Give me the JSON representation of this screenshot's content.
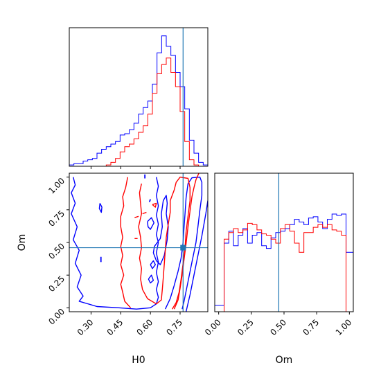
{
  "chart_data": {
    "type": "corner",
    "colors": {
      "blue": "#0000ff",
      "red": "#ff0000",
      "truth": "#1f77b4"
    },
    "truth": {
      "H0": 0.765,
      "Om": 0.46
    },
    "parameters": [
      "H0",
      "Om"
    ],
    "xlabel_h0": "H0",
    "xlabel_om": "Om",
    "ylabel_om": "Om",
    "h0_range": [
      0.19,
      0.89
    ],
    "om_range": [
      -0.03,
      1.03
    ],
    "h0_ticks": [
      "0.30",
      "0.45",
      "0.60",
      "0.75"
    ],
    "h0_tick_values": [
      0.3,
      0.45,
      0.6,
      0.75
    ],
    "om_ticks": [
      "0.00",
      "0.25",
      "0.50",
      "0.75",
      "1.00"
    ],
    "om_tick_values": [
      0.0,
      0.25,
      0.5,
      0.75,
      1.0
    ],
    "hist_h0": {
      "bin_edges": [
        0.19,
        0.2133,
        0.2367,
        0.26,
        0.2833,
        0.3067,
        0.33,
        0.3533,
        0.3767,
        0.4,
        0.4233,
        0.4467,
        0.47,
        0.4933,
        0.5167,
        0.54,
        0.5633,
        0.5867,
        0.61,
        0.6333,
        0.6567,
        0.68,
        0.7033,
        0.7267,
        0.75,
        0.7733,
        0.7967,
        0.82,
        0.8433,
        0.8667,
        0.89
      ],
      "series": [
        {
          "name": "blue",
          "values": [
            0.01,
            0.02,
            0.02,
            0.04,
            0.05,
            0.06,
            0.1,
            0.13,
            0.15,
            0.17,
            0.19,
            0.24,
            0.25,
            0.28,
            0.33,
            0.4,
            0.45,
            0.5,
            0.63,
            0.87,
            1.0,
            0.92,
            0.85,
            0.72,
            0.61,
            0.44,
            0.2,
            0.1,
            0.03,
            0.01
          ]
        },
        {
          "name": "red",
          "values": [
            0,
            0,
            0,
            0,
            0,
            0,
            0,
            0,
            0.01,
            0.03,
            0.06,
            0.11,
            0.15,
            0.17,
            0.21,
            0.26,
            0.31,
            0.4,
            0.56,
            0.71,
            0.78,
            0.83,
            0.72,
            0.61,
            0.42,
            0.19,
            0.05,
            0.01,
            0,
            0
          ]
        }
      ]
    },
    "hist_om": {
      "bin_edges": [
        -0.03,
        0.0059,
        0.0418,
        0.0777,
        0.1135,
        0.1494,
        0.1853,
        0.2212,
        0.2571,
        0.2929,
        0.3288,
        0.3647,
        0.4006,
        0.4365,
        0.4724,
        0.5082,
        0.5441,
        0.58,
        0.6159,
        0.6518,
        0.6876,
        0.7235,
        0.7594,
        0.7953,
        0.8312,
        0.8671,
        0.9029,
        0.9388,
        0.9747,
        1.0106,
        1.03
      ],
      "series": [
        {
          "name": "blue",
          "values": [
            0.05,
            0.05,
            0.52,
            0.61,
            0.5,
            0.58,
            0.63,
            0.52,
            0.58,
            0.6,
            0.5,
            0.48,
            0.56,
            0.6,
            0.61,
            0.63,
            0.66,
            0.7,
            0.68,
            0.66,
            0.71,
            0.72,
            0.68,
            0.63,
            0.7,
            0.74,
            0.73,
            0.74,
            0.45,
            0.45
          ]
        },
        {
          "name": "red",
          "values": [
            0.0,
            0.0,
            0.55,
            0.6,
            0.63,
            0.6,
            0.62,
            0.67,
            0.66,
            0.62,
            0.59,
            0.58,
            0.55,
            0.52,
            0.63,
            0.66,
            0.61,
            0.52,
            0.45,
            0.6,
            0.6,
            0.64,
            0.66,
            0.64,
            0.66,
            0.62,
            0.61,
            0.58,
            0.0,
            0.0
          ]
        }
      ]
    },
    "contours": {
      "blue": [
        [
          [
            0.21,
            1.0
          ],
          [
            0.22,
            0.94
          ],
          [
            0.2,
            0.88
          ],
          [
            0.22,
            0.8
          ],
          [
            0.2,
            0.72
          ],
          [
            0.23,
            0.62
          ],
          [
            0.21,
            0.52
          ],
          [
            0.24,
            0.44
          ],
          [
            0.22,
            0.34
          ],
          [
            0.25,
            0.25
          ],
          [
            0.23,
            0.16
          ],
          [
            0.26,
            0.09
          ],
          [
            0.24,
            0.05
          ],
          [
            0.33,
            0.01
          ],
          [
            0.44,
            0.0
          ],
          [
            0.53,
            -0.01
          ],
          [
            0.6,
            0.0
          ],
          [
            0.63,
            0.03
          ],
          [
            0.64,
            0.08
          ],
          [
            0.63,
            0.14
          ],
          [
            0.64,
            0.2
          ],
          [
            0.63,
            0.27
          ],
          [
            0.64,
            0.35
          ],
          [
            0.63,
            0.42
          ],
          [
            0.64,
            0.5
          ],
          [
            0.63,
            0.56
          ],
          [
            0.64,
            0.64
          ],
          [
            0.63,
            0.71
          ],
          [
            0.64,
            0.78
          ],
          [
            0.63,
            0.86
          ],
          [
            0.64,
            0.93
          ],
          [
            0.63,
            1.0
          ]
        ],
        [
          [
            0.78,
            -0.03
          ],
          [
            0.8,
            0.1
          ],
          [
            0.82,
            0.25
          ],
          [
            0.84,
            0.4
          ],
          [
            0.86,
            0.55
          ],
          [
            0.88,
            0.72
          ],
          [
            0.89,
            0.82
          ]
        ],
        [
          [
            0.675,
            -0.01
          ],
          [
            0.7,
            0.07
          ],
          [
            0.72,
            0.17
          ],
          [
            0.74,
            0.28
          ],
          [
            0.755,
            0.38
          ],
          [
            0.765,
            0.5
          ],
          [
            0.77,
            0.62
          ],
          [
            0.775,
            0.72
          ],
          [
            0.78,
            0.84
          ],
          [
            0.79,
            0.95
          ],
          [
            0.81,
            0.995
          ],
          [
            0.85,
            1.0
          ],
          [
            0.86,
            0.96
          ],
          [
            0.86,
            0.86
          ],
          [
            0.85,
            0.75
          ],
          [
            0.84,
            0.62
          ],
          [
            0.83,
            0.5
          ],
          [
            0.81,
            0.35
          ],
          [
            0.79,
            0.2
          ],
          [
            0.77,
            0.05
          ],
          [
            0.76,
            -0.01
          ]
        ],
        [
          [
            0.615,
            0.42
          ],
          [
            0.63,
            0.36
          ],
          [
            0.65,
            0.33
          ],
          [
            0.67,
            0.4
          ],
          [
            0.685,
            0.52
          ],
          [
            0.69,
            0.62
          ],
          [
            0.68,
            0.72
          ],
          [
            0.685,
            0.8
          ],
          [
            0.68,
            0.86
          ],
          [
            0.665,
            0.82
          ],
          [
            0.655,
            0.72
          ],
          [
            0.66,
            0.62
          ],
          [
            0.65,
            0.53
          ],
          [
            0.62,
            0.47
          ],
          [
            0.615,
            0.42
          ]
        ],
        [
          [
            0.345,
            0.8
          ],
          [
            0.355,
            0.77
          ],
          [
            0.352,
            0.73
          ],
          [
            0.342,
            0.76
          ],
          [
            0.345,
            0.8
          ]
        ],
        [
          [
            0.585,
            0.66
          ],
          [
            0.605,
            0.69
          ],
          [
            0.618,
            0.65
          ],
          [
            0.6,
            0.6
          ],
          [
            0.588,
            0.62
          ],
          [
            0.585,
            0.66
          ]
        ],
        [
          [
            0.59,
            0.22
          ],
          [
            0.605,
            0.25
          ],
          [
            0.615,
            0.21
          ],
          [
            0.6,
            0.19
          ],
          [
            0.59,
            0.22
          ]
        ],
        [
          [
            0.6,
            0.33
          ],
          [
            0.615,
            0.36
          ],
          [
            0.625,
            0.33
          ],
          [
            0.61,
            0.3
          ],
          [
            0.6,
            0.33
          ]
        ]
      ],
      "red": [
        [
          [
            0.485,
            1.0
          ],
          [
            0.475,
            0.92
          ],
          [
            0.46,
            0.85
          ],
          [
            0.465,
            0.78
          ],
          [
            0.45,
            0.7
          ],
          [
            0.45,
            0.62
          ],
          [
            0.46,
            0.54
          ],
          [
            0.45,
            0.47
          ],
          [
            0.46,
            0.4
          ],
          [
            0.45,
            0.33
          ],
          [
            0.465,
            0.25
          ],
          [
            0.45,
            0.18
          ],
          [
            0.46,
            0.12
          ],
          [
            0.47,
            0.05
          ],
          [
            0.5,
            0.0
          ]
        ],
        [
          [
            0.555,
            0.95
          ],
          [
            0.545,
            0.88
          ],
          [
            0.55,
            0.8
          ],
          [
            0.555,
            0.72
          ],
          [
            0.54,
            0.62
          ],
          [
            0.55,
            0.54
          ],
          [
            0.555,
            0.46
          ],
          [
            0.545,
            0.38
          ],
          [
            0.555,
            0.3
          ],
          [
            0.55,
            0.22
          ],
          [
            0.56,
            0.14
          ],
          [
            0.585,
            0.07
          ],
          [
            0.63,
            0.03
          ],
          [
            0.655,
            0.06
          ],
          [
            0.66,
            0.14
          ],
          [
            0.665,
            0.23
          ],
          [
            0.67,
            0.33
          ],
          [
            0.675,
            0.44
          ],
          [
            0.68,
            0.54
          ],
          [
            0.69,
            0.64
          ],
          [
            0.7,
            0.73
          ],
          [
            0.7,
            0.82
          ],
          [
            0.72,
            0.9
          ],
          [
            0.73,
            0.96
          ],
          [
            0.75,
            1.0
          ],
          [
            0.79,
            0.99
          ],
          [
            0.8,
            0.92
          ],
          [
            0.8,
            0.82
          ],
          [
            0.79,
            0.7
          ],
          [
            0.78,
            0.58
          ],
          [
            0.775,
            0.46
          ],
          [
            0.765,
            0.34
          ],
          [
            0.755,
            0.22
          ],
          [
            0.745,
            0.12
          ],
          [
            0.73,
            0.04
          ],
          [
            0.71,
            -0.01
          ]
        ],
        [
          [
            0.72,
            -0.01
          ],
          [
            0.74,
            0.06
          ],
          [
            0.75,
            0.15
          ],
          [
            0.76,
            0.25
          ],
          [
            0.77,
            0.37
          ],
          [
            0.78,
            0.49
          ],
          [
            0.79,
            0.62
          ],
          [
            0.8,
            0.74
          ],
          [
            0.81,
            0.85
          ],
          [
            0.82,
            0.92
          ],
          [
            0.83,
            0.98
          ],
          [
            0.845,
            1.03
          ]
        ],
        [
          [
            0.52,
            0.69
          ],
          [
            0.54,
            0.7
          ]
        ],
        [
          [
            0.56,
            0.72
          ],
          [
            0.58,
            0.73
          ]
        ],
        [
          [
            0.52,
            0.53
          ],
          [
            0.535,
            0.53
          ]
        ],
        [
          [
            0.61,
            0.79
          ],
          [
            0.63,
            0.8
          ],
          [
            0.625,
            0.77
          ],
          [
            0.61,
            0.79
          ]
        ]
      ],
      "blue_ticks": [
        [
          [
            0.572,
            0.99
          ],
          [
            0.572,
            1.02
          ]
        ],
        [
          [
            0.35,
            0.35
          ],
          [
            0.35,
            0.39
          ]
        ],
        [
          [
            0.595,
            0.81
          ],
          [
            0.6,
            0.83
          ]
        ]
      ]
    },
    "truth_marker": {
      "H0": 0.765,
      "Om": 0.46
    }
  }
}
